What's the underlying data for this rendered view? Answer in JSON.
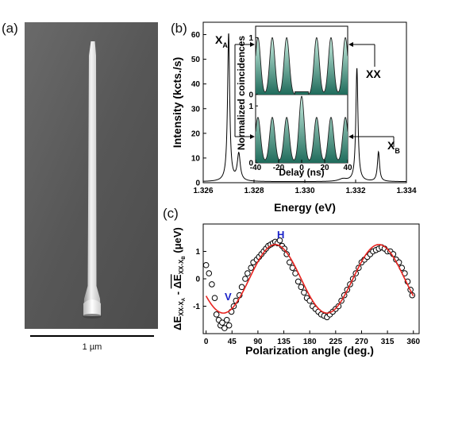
{
  "panels": {
    "a": {
      "label": "(a)",
      "scale_bar_label": "1 µm"
    },
    "b": {
      "label": "(b)",
      "peak_labels": {
        "xa_main": "X",
        "xa_sub": "A",
        "xx": "XX",
        "xb_main": "X",
        "xb_sub": "B"
      },
      "inset_xlabel": "Delay (ns)",
      "inset_ylabel": "Normalized coincidences"
    },
    "c": {
      "label": "(c)",
      "annotations": {
        "v": "V",
        "h": "H"
      },
      "ylabel": "ΔE",
      "ylabel_unit": "(μeV)"
    }
  },
  "colors": {
    "fit_line": "#e8231f",
    "annotation_blue": "#1a22c8",
    "inset_fill_light": "#c9f0e2",
    "inset_fill_dark": "#1f6b5b",
    "sem_background": "#5a5a5a"
  },
  "chart_data": [
    {
      "id": "spectrum",
      "type": "line",
      "xlabel": "Energy (eV)",
      "ylabel": "Intensity (kcts./s)",
      "xlim": [
        1.326,
        1.334
      ],
      "ylim": [
        0,
        65
      ],
      "xticks": [
        "1.326",
        "1.328",
        "1.330",
        "1.332",
        "1.334"
      ],
      "yticks": [
        "0",
        "10",
        "20",
        "30",
        "40",
        "50",
        "60"
      ],
      "peaks": [
        {
          "x": 1.327,
          "y": 60,
          "width": 5e-05
        },
        {
          "x": 1.3274,
          "y": 11,
          "width": 7e-05
        },
        {
          "x": 1.3315,
          "y": 1,
          "width": 0.0002
        },
        {
          "x": 1.33205,
          "y": 46,
          "width": 5e-05
        },
        {
          "x": 1.3329,
          "y": 12,
          "width": 5e-05
        }
      ]
    },
    {
      "id": "inset_top",
      "type": "area",
      "xlim": [
        -40,
        40
      ],
      "ylim": [
        0,
        1.2
      ],
      "xticks": [
        "-40",
        "-20",
        "0",
        "20",
        "40"
      ],
      "yticks": [
        "0",
        "1"
      ],
      "peak_positions": [
        -38,
        -25.5,
        -13,
        13,
        25.5,
        38
      ],
      "peak_height": 1.0,
      "center_value": 0.05
    },
    {
      "id": "inset_bottom",
      "type": "area",
      "xlim": [
        -40,
        40
      ],
      "ylim": [
        0,
        1.2
      ],
      "xticks": [
        "-40",
        "-20",
        "0",
        "20",
        "40"
      ],
      "yticks": [
        "0",
        "1"
      ],
      "peak_positions": [
        -38,
        -25.5,
        -13,
        0,
        13,
        25.5,
        38
      ],
      "peak_heights": [
        0.78,
        0.78,
        0.78,
        1.15,
        0.78,
        0.78,
        0.78
      ]
    },
    {
      "id": "splitting",
      "type": "scatter",
      "xlabel": "Polarization angle (deg.)",
      "xlim": [
        -5,
        370
      ],
      "ylim": [
        -2,
        2
      ],
      "xticks": [
        "0",
        "45",
        "90",
        "135",
        "180",
        "225",
        "270",
        "315",
        "360"
      ],
      "yticks": [
        "-1",
        "0",
        "1"
      ],
      "fit": {
        "type": "sine",
        "amplitude": 1.25,
        "period": 180,
        "phase_deg": 120,
        "offset": 0
      },
      "points": [
        {
          "x": 0,
          "y": 0.5
        },
        {
          "x": 5,
          "y": 0.2
        },
        {
          "x": 10,
          "y": -0.2
        },
        {
          "x": 15,
          "y": -0.7
        },
        {
          "x": 18,
          "y": -1.3
        },
        {
          "x": 22,
          "y": -1.5
        },
        {
          "x": 25,
          "y": -1.7
        },
        {
          "x": 28,
          "y": -1.6
        },
        {
          "x": 32,
          "y": -1.8
        },
        {
          "x": 36,
          "y": -1.5
        },
        {
          "x": 40,
          "y": -1.7
        },
        {
          "x": 44,
          "y": -1.2
        },
        {
          "x": 48,
          "y": -1.0
        },
        {
          "x": 52,
          "y": -0.8
        },
        {
          "x": 58,
          "y": -0.6
        },
        {
          "x": 62,
          "y": -0.3
        },
        {
          "x": 68,
          "y": 0.0
        },
        {
          "x": 72,
          "y": 0.2
        },
        {
          "x": 78,
          "y": 0.4
        },
        {
          "x": 82,
          "y": 0.6
        },
        {
          "x": 88,
          "y": 0.7
        },
        {
          "x": 92,
          "y": 0.8
        },
        {
          "x": 96,
          "y": 0.9
        },
        {
          "x": 100,
          "y": 1.0
        },
        {
          "x": 104,
          "y": 1.1
        },
        {
          "x": 108,
          "y": 1.2
        },
        {
          "x": 112,
          "y": 1.25
        },
        {
          "x": 116,
          "y": 1.3
        },
        {
          "x": 120,
          "y": 1.35
        },
        {
          "x": 124,
          "y": 1.3
        },
        {
          "x": 128,
          "y": 1.4
        },
        {
          "x": 132,
          "y": 1.2
        },
        {
          "x": 136,
          "y": 1.1
        },
        {
          "x": 140,
          "y": 0.9
        },
        {
          "x": 145,
          "y": 0.6
        },
        {
          "x": 150,
          "y": 0.4
        },
        {
          "x": 155,
          "y": 0.2
        },
        {
          "x": 160,
          "y": -0.1
        },
        {
          "x": 165,
          "y": -0.3
        },
        {
          "x": 170,
          "y": -0.5
        },
        {
          "x": 175,
          "y": -0.7
        },
        {
          "x": 180,
          "y": -0.8
        },
        {
          "x": 185,
          "y": -1.0
        },
        {
          "x": 190,
          "y": -1.1
        },
        {
          "x": 195,
          "y": -1.2
        },
        {
          "x": 200,
          "y": -1.3
        },
        {
          "x": 205,
          "y": -1.35
        },
        {
          "x": 210,
          "y": -1.4
        },
        {
          "x": 215,
          "y": -1.3
        },
        {
          "x": 220,
          "y": -1.2
        },
        {
          "x": 225,
          "y": -1.1
        },
        {
          "x": 230,
          "y": -1.0
        },
        {
          "x": 235,
          "y": -0.8
        },
        {
          "x": 240,
          "y": -0.6
        },
        {
          "x": 245,
          "y": -0.4
        },
        {
          "x": 250,
          "y": -0.2
        },
        {
          "x": 255,
          "y": 0.0
        },
        {
          "x": 260,
          "y": 0.2
        },
        {
          "x": 265,
          "y": 0.4
        },
        {
          "x": 270,
          "y": 0.6
        },
        {
          "x": 275,
          "y": 0.7
        },
        {
          "x": 280,
          "y": 0.8
        },
        {
          "x": 285,
          "y": 0.9
        },
        {
          "x": 290,
          "y": 1.0
        },
        {
          "x": 295,
          "y": 1.05
        },
        {
          "x": 300,
          "y": 1.1
        },
        {
          "x": 305,
          "y": 1.15
        },
        {
          "x": 310,
          "y": 1.1
        },
        {
          "x": 315,
          "y": 1.0
        },
        {
          "x": 320,
          "y": 1.0
        },
        {
          "x": 325,
          "y": 0.9
        },
        {
          "x": 330,
          "y": 0.7
        },
        {
          "x": 335,
          "y": 0.6
        },
        {
          "x": 340,
          "y": 0.4
        },
        {
          "x": 345,
          "y": 0.2
        },
        {
          "x": 350,
          "y": -0.1
        },
        {
          "x": 355,
          "y": -0.4
        },
        {
          "x": 358,
          "y": -0.6
        }
      ]
    }
  ]
}
